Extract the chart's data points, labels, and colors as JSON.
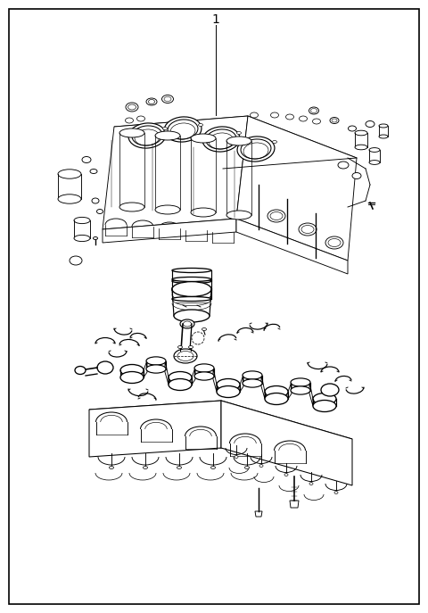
{
  "background_color": "#ffffff",
  "border_color": "#000000",
  "border_linewidth": 1.2,
  "title": "1",
  "figsize": [
    4.8,
    6.87
  ],
  "dpi": 100,
  "line_color": "#000000",
  "lw": 0.65
}
